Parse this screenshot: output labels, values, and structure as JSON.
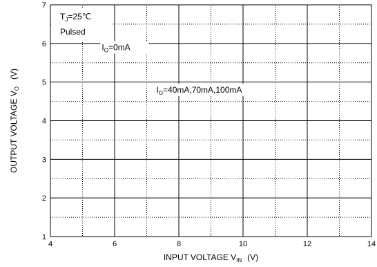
{
  "chart_data": {
    "type": "line",
    "title": "",
    "xlabel": {
      "main": "INPUT VOLTAGE   V",
      "sub": "IN",
      "unit": "(V)"
    },
    "ylabel": {
      "main": "OUTPUT VOLTAGE   V",
      "sub": "O",
      "unit": "(V)"
    },
    "xlim": [
      4,
      14
    ],
    "ylim": [
      1,
      7
    ],
    "x_major_ticks": [
      4,
      6,
      8,
      10,
      12,
      14
    ],
    "x_minor_ticks": [
      5,
      7,
      9,
      11,
      13
    ],
    "y_major_ticks": [
      1,
      2,
      3,
      4,
      5,
      6,
      7
    ],
    "y_minor_ticks": [
      1.5,
      2.5,
      3.5,
      4.5,
      5.5,
      6.5
    ],
    "grid": {
      "major": "solid",
      "minor": "dotted"
    },
    "annotations": {
      "conditions": {
        "line1_main": "T",
        "line1_sub": "J",
        "line1_rest": "=25℃",
        "line2": "Pulsed"
      },
      "label_io0": {
        "main": "I",
        "sub": "O",
        "rest": "=0mA",
        "x": 5.6,
        "y": 5.9
      },
      "label_io_load": {
        "main": "I",
        "sub": "O",
        "rest": "=40mA,70mA,100mA",
        "x": 7.3,
        "y": 4.8
      }
    },
    "series": []
  }
}
